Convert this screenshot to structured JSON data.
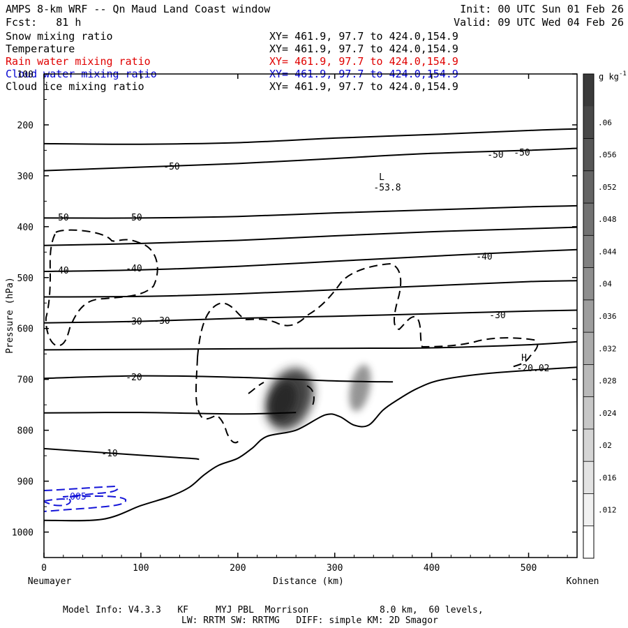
{
  "header": {
    "title": "AMPS 8-km WRF -- Qn Maud Land Coast window",
    "init": "Init: 00 UTC Sun 01 Feb 26",
    "fcst": "Fcst:   81 h",
    "valid": "Valid: 09 UTC Wed 04 Feb 26"
  },
  "fields": [
    {
      "name": "Snow mixing ratio",
      "xy": "XY= 461.9, 97.7 to 424.0,154.9",
      "color": "#000000"
    },
    {
      "name": "Temperature",
      "xy": "XY= 461.9, 97.7 to 424.0,154.9",
      "color": "#000000"
    },
    {
      "name": "Rain water mixing ratio",
      "xy": "XY= 461.9, 97.7 to 424.0,154.9",
      "color": "#e00000"
    },
    {
      "name": "Cloud water mixing ratio",
      "xy": "XY= 461.9, 97.7 to 424.0,154.9",
      "color": "#0000d0"
    },
    {
      "name": "Cloud ice mixing ratio",
      "xy": "XY= 461.9, 97.7 to 424.0,154.9",
      "color": "#000000"
    }
  ],
  "footer": {
    "model_info": "Model Info: V4.3.3   KF     MYJ PBL  Morrison             8.0 km,  60 levels,",
    "physics": "LW: RRTM SW: RRTMG   DIFF: simple KM: 2D Smagor"
  },
  "chart_data": {
    "type": "contour",
    "xlabel": "Distance (km)",
    "ylabel": "Pressure (hPa)",
    "xlim": [
      0,
      550
    ],
    "ylim": [
      1050,
      100
    ],
    "x_ticks": [
      0,
      100,
      200,
      300,
      400,
      500
    ],
    "y_ticks": [
      100,
      200,
      300,
      400,
      500,
      600,
      700,
      800,
      900,
      1000
    ],
    "x_left_label": "Neumayer",
    "x_right_label": "Kohnen",
    "colorbar": {
      "units": "g kg",
      "units_exp": "-1",
      "ticks": [
        ".06",
        ".056",
        ".052",
        ".048",
        ".044",
        ".04",
        ".036",
        ".032",
        ".028",
        ".024",
        ".02",
        ".016",
        ".012"
      ],
      "range": [
        0.008,
        0.064
      ],
      "color_low": "#ffffff",
      "color_high": "#3a3a3a"
    },
    "temperature_contours": [
      {
        "label": "-50",
        "points": [
          [
            0,
            237
          ],
          [
            100,
            238
          ],
          [
            200,
            235
          ],
          [
            300,
            226
          ],
          [
            400,
            219
          ],
          [
            500,
            211
          ],
          [
            550,
            208
          ]
        ]
      },
      {
        "label": "-50",
        "points": [
          [
            0,
            290
          ],
          [
            100,
            283
          ],
          [
            200,
            276
          ],
          [
            300,
            266
          ],
          [
            400,
            256
          ],
          [
            500,
            250
          ],
          [
            550,
            246
          ]
        ]
      },
      {
        "label": "-50",
        "points": [
          [
            0,
            383
          ],
          [
            100,
            383
          ],
          [
            200,
            380
          ],
          [
            300,
            373
          ],
          [
            400,
            367
          ],
          [
            500,
            361
          ],
          [
            550,
            359
          ]
        ]
      },
      {
        "label": "",
        "points": [
          [
            0,
            437
          ],
          [
            100,
            433
          ],
          [
            200,
            427
          ],
          [
            300,
            418
          ],
          [
            400,
            410
          ],
          [
            500,
            404
          ],
          [
            550,
            401
          ]
        ]
      },
      {
        "label": "-40",
        "points": [
          [
            0,
            488
          ],
          [
            100,
            485
          ],
          [
            200,
            478
          ],
          [
            300,
            468
          ],
          [
            400,
            458
          ],
          [
            500,
            449
          ],
          [
            550,
            445
          ]
        ]
      },
      {
        "label": "",
        "points": [
          [
            0,
            538
          ],
          [
            100,
            537
          ],
          [
            200,
            532
          ],
          [
            300,
            524
          ],
          [
            400,
            516
          ],
          [
            500,
            508
          ],
          [
            550,
            506
          ]
        ]
      },
      {
        "label": "-30",
        "points": [
          [
            0,
            589
          ],
          [
            100,
            586
          ],
          [
            200,
            580
          ],
          [
            300,
            576
          ],
          [
            400,
            571
          ],
          [
            500,
            566
          ],
          [
            550,
            564
          ]
        ]
      },
      {
        "label": "",
        "points": [
          [
            0,
            642
          ],
          [
            100,
            641
          ],
          [
            200,
            640
          ],
          [
            300,
            639
          ],
          [
            400,
            638
          ],
          [
            500,
            632
          ],
          [
            550,
            626
          ]
        ]
      },
      {
        "label": "-20",
        "points": [
          [
            0,
            698
          ],
          [
            100,
            693
          ],
          [
            200,
            696
          ],
          [
            300,
            703
          ],
          [
            360,
            705
          ]
        ]
      },
      {
        "label": "",
        "points": [
          [
            0,
            766
          ],
          [
            100,
            765
          ],
          [
            200,
            768
          ],
          [
            260,
            765
          ]
        ]
      },
      {
        "label": "-10",
        "points": [
          [
            0,
            836
          ],
          [
            100,
            849
          ],
          [
            150,
            855
          ],
          [
            160,
            857
          ]
        ]
      }
    ],
    "terrain": [
      [
        0,
        977
      ],
      [
        60,
        975
      ],
      [
        100,
        948
      ],
      [
        130,
        930
      ],
      [
        150,
        912
      ],
      [
        165,
        888
      ],
      [
        180,
        869
      ],
      [
        200,
        855
      ],
      [
        215,
        835
      ],
      [
        230,
        812
      ],
      [
        260,
        800
      ],
      [
        290,
        770
      ],
      [
        305,
        773
      ],
      [
        320,
        790
      ],
      [
        335,
        790
      ],
      [
        350,
        760
      ],
      [
        365,
        740
      ],
      [
        385,
        718
      ],
      [
        410,
        701
      ],
      [
        460,
        688
      ],
      [
        550,
        676
      ]
    ],
    "annotations": [
      {
        "type": "low",
        "text": "L",
        "value": "-53.8",
        "x": 345,
        "p": 302
      },
      {
        "type": "high",
        "text": "H",
        "value": "-20.02",
        "x": 493,
        "p": 670
      }
    ],
    "snow_maxima": [
      {
        "x": 255,
        "p": 740,
        "max": 0.062
      },
      {
        "x": 328,
        "p": 740,
        "max": 0.042
      }
    ]
  }
}
